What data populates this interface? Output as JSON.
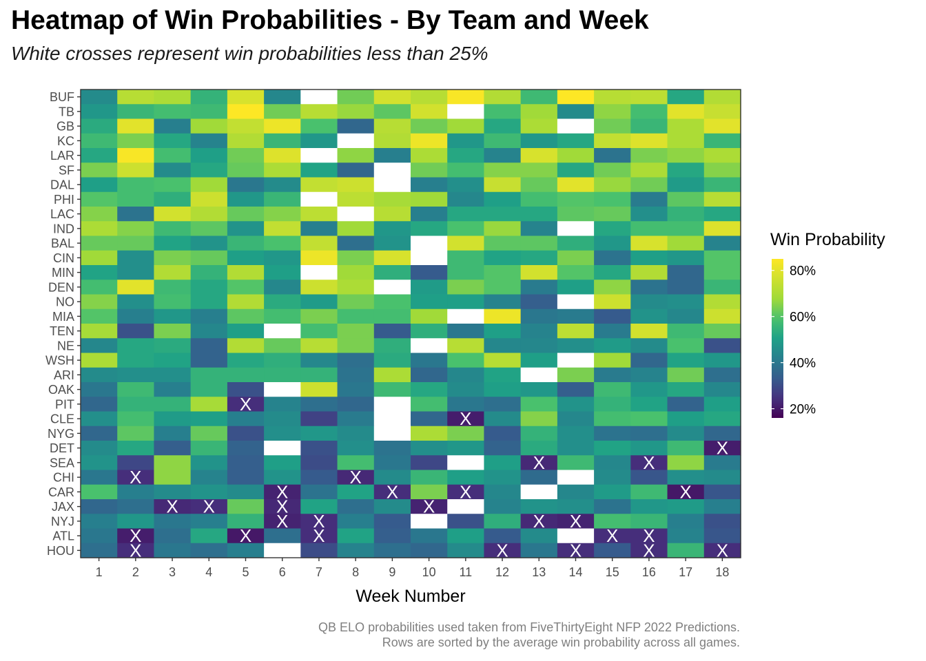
{
  "title": "Heatmap of Win Probabilities - By Team and Week",
  "subtitle": "White crosses represent win probabilities less than 25%",
  "caption": [
    "QB ELO probabilities used taken from FiveThirtyEight NFP 2022 Predictions.",
    "Rows are sorted by the average win probability across all games."
  ],
  "legend": {
    "title": "Win Probability",
    "tick_labels": [
      "20%",
      "40%",
      "60%",
      "80%"
    ],
    "tick_values": [
      0.2,
      0.4,
      0.6,
      0.8
    ],
    "range": [
      0.16,
      0.85
    ]
  },
  "chart_data": {
    "type": "heatmap",
    "title": "Heatmap of Win Probabilities - By Team and Week",
    "xlabel": "Week Number",
    "ylabel": "",
    "x": [
      1,
      2,
      3,
      4,
      5,
      6,
      7,
      8,
      9,
      10,
      11,
      12,
      13,
      14,
      15,
      16,
      17,
      18
    ],
    "y": [
      "BUF",
      "TB",
      "GB",
      "KC",
      "LAR",
      "SF",
      "DAL",
      "PHI",
      "LAC",
      "IND",
      "BAL",
      "CIN",
      "MIN",
      "DEN",
      "NO",
      "MIA",
      "TEN",
      "NE",
      "WSH",
      "ARI",
      "OAK",
      "PIT",
      "CLE",
      "NYG",
      "DET",
      "SEA",
      "CHI",
      "CAR",
      "JAX",
      "NYJ",
      "ATL",
      "HOU"
    ],
    "values": [
      [
        0.45,
        0.72,
        0.7,
        0.55,
        0.78,
        0.44,
        null,
        0.63,
        0.77,
        0.72,
        0.84,
        0.71,
        0.57,
        0.85,
        0.72,
        0.73,
        0.52,
        0.71
      ],
      [
        0.48,
        0.56,
        0.58,
        0.57,
        0.85,
        0.63,
        0.72,
        0.67,
        0.61,
        0.77,
        null,
        0.58,
        0.68,
        0.45,
        0.66,
        0.58,
        0.8,
        0.75
      ],
      [
        0.53,
        0.8,
        0.42,
        0.68,
        0.74,
        0.82,
        0.59,
        0.36,
        0.72,
        0.63,
        0.68,
        0.52,
        0.7,
        null,
        0.63,
        0.56,
        0.7,
        0.8
      ],
      [
        0.57,
        0.64,
        0.52,
        0.43,
        0.71,
        0.56,
        0.48,
        null,
        0.71,
        0.82,
        0.48,
        0.57,
        0.48,
        0.52,
        0.74,
        0.79,
        0.7,
        0.56
      ],
      [
        0.52,
        0.84,
        0.58,
        0.5,
        0.63,
        0.79,
        null,
        0.66,
        0.42,
        0.7,
        0.52,
        0.43,
        0.78,
        0.68,
        0.39,
        0.64,
        0.66,
        0.7
      ],
      [
        0.64,
        0.76,
        0.45,
        0.52,
        0.62,
        0.7,
        0.51,
        0.36,
        null,
        0.63,
        0.58,
        0.65,
        0.65,
        0.52,
        0.63,
        0.7,
        0.52,
        0.65
      ],
      [
        0.5,
        0.58,
        0.59,
        0.68,
        0.4,
        0.45,
        0.74,
        0.76,
        null,
        0.42,
        0.46,
        0.75,
        0.62,
        0.8,
        0.67,
        0.63,
        0.49,
        0.56
      ],
      [
        0.6,
        0.58,
        0.54,
        0.76,
        0.48,
        0.56,
        null,
        0.73,
        0.69,
        0.68,
        0.44,
        0.5,
        0.58,
        0.6,
        0.59,
        0.41,
        0.61,
        0.72
      ],
      [
        0.65,
        0.39,
        0.77,
        0.71,
        0.62,
        0.65,
        0.73,
        null,
        0.72,
        0.42,
        0.52,
        0.52,
        0.52,
        0.61,
        0.62,
        0.46,
        0.55,
        0.52
      ],
      [
        0.7,
        0.65,
        0.57,
        0.61,
        0.47,
        0.74,
        0.42,
        0.68,
        0.48,
        0.52,
        0.59,
        0.67,
        0.43,
        null,
        0.52,
        0.58,
        0.58,
        0.79
      ],
      [
        0.62,
        0.62,
        0.51,
        0.47,
        0.56,
        0.59,
        0.74,
        0.38,
        0.47,
        null,
        0.77,
        0.61,
        0.61,
        0.54,
        0.48,
        0.78,
        0.68,
        0.43
      ],
      [
        0.68,
        0.46,
        0.64,
        0.62,
        0.5,
        0.48,
        0.82,
        0.64,
        0.78,
        null,
        0.57,
        0.51,
        0.52,
        0.64,
        0.39,
        0.5,
        0.48,
        0.6
      ],
      [
        0.51,
        0.46,
        0.71,
        0.55,
        0.71,
        0.5,
        null,
        0.68,
        0.54,
        0.33,
        0.57,
        0.6,
        0.77,
        0.6,
        0.52,
        0.71,
        0.36,
        0.6
      ],
      [
        0.58,
        0.8,
        0.57,
        0.52,
        0.6,
        0.44,
        0.76,
        0.7,
        null,
        0.49,
        0.64,
        0.6,
        0.41,
        0.5,
        0.66,
        0.39,
        0.36,
        0.56
      ],
      [
        0.65,
        0.46,
        0.58,
        0.52,
        0.71,
        0.53,
        0.49,
        0.63,
        0.59,
        0.5,
        0.5,
        0.43,
        0.34,
        null,
        0.76,
        0.45,
        0.46,
        0.71
      ],
      [
        0.6,
        0.42,
        0.48,
        0.42,
        0.61,
        0.58,
        0.64,
        0.58,
        0.58,
        0.68,
        null,
        0.82,
        0.4,
        0.41,
        0.33,
        0.47,
        0.44,
        0.76
      ],
      [
        0.69,
        0.31,
        0.64,
        0.44,
        0.5,
        null,
        0.58,
        0.64,
        0.33,
        0.54,
        0.4,
        0.5,
        0.43,
        0.73,
        0.41,
        0.77,
        0.57,
        0.62
      ],
      [
        0.44,
        0.52,
        0.53,
        0.35,
        0.71,
        0.62,
        0.72,
        0.64,
        0.54,
        null,
        0.72,
        0.44,
        0.44,
        0.46,
        0.49,
        0.45,
        0.59,
        0.31
      ],
      [
        0.7,
        0.52,
        0.51,
        0.35,
        0.52,
        0.54,
        0.44,
        0.38,
        0.53,
        0.4,
        0.59,
        0.72,
        0.5,
        null,
        0.68,
        0.36,
        0.51,
        0.48
      ],
      [
        0.45,
        0.46,
        0.46,
        0.55,
        0.55,
        0.55,
        0.55,
        0.39,
        0.7,
        0.36,
        0.44,
        0.51,
        null,
        0.64,
        0.41,
        0.43,
        0.63,
        0.38
      ],
      [
        0.4,
        0.57,
        0.42,
        0.55,
        0.31,
        null,
        0.76,
        0.4,
        0.57,
        0.52,
        0.45,
        0.5,
        0.48,
        0.34,
        0.57,
        0.48,
        0.52,
        0.44
      ],
      [
        0.36,
        0.55,
        0.55,
        0.69,
        0.24,
        0.43,
        0.38,
        0.36,
        null,
        0.58,
        0.4,
        0.38,
        0.59,
        0.47,
        0.55,
        0.51,
        0.35,
        0.5
      ],
      [
        0.46,
        0.58,
        0.49,
        0.5,
        0.42,
        0.45,
        0.28,
        0.41,
        null,
        0.36,
        0.21,
        0.45,
        0.65,
        0.44,
        0.58,
        0.59,
        0.5,
        0.52
      ],
      [
        0.36,
        0.61,
        0.42,
        0.62,
        0.31,
        0.46,
        0.48,
        0.45,
        null,
        0.7,
        0.64,
        0.33,
        0.55,
        0.46,
        0.39,
        0.38,
        0.45,
        0.36
      ],
      [
        0.45,
        0.52,
        0.34,
        0.56,
        0.35,
        null,
        0.31,
        0.46,
        0.39,
        0.46,
        0.48,
        0.35,
        0.53,
        0.46,
        0.51,
        0.48,
        0.57,
        0.21
      ],
      [
        0.47,
        0.29,
        0.66,
        0.47,
        0.34,
        0.5,
        0.3,
        0.58,
        0.4,
        0.29,
        null,
        0.5,
        0.23,
        0.57,
        0.44,
        0.24,
        0.66,
        0.41
      ],
      [
        0.4,
        0.24,
        0.66,
        0.43,
        0.34,
        0.47,
        0.33,
        0.23,
        0.45,
        0.56,
        0.5,
        0.47,
        0.37,
        null,
        0.45,
        0.32,
        0.46,
        0.45
      ],
      [
        0.59,
        0.42,
        0.45,
        0.47,
        0.45,
        0.22,
        0.39,
        0.51,
        0.24,
        0.64,
        0.24,
        0.44,
        null,
        0.44,
        0.49,
        0.57,
        0.2,
        0.32
      ],
      [
        0.36,
        0.38,
        0.23,
        0.24,
        0.62,
        0.23,
        0.51,
        0.38,
        0.45,
        0.22,
        null,
        0.43,
        0.47,
        0.46,
        0.39,
        0.48,
        0.49,
        0.42
      ],
      [
        0.42,
        0.48,
        0.4,
        0.42,
        0.55,
        0.22,
        0.24,
        0.42,
        0.33,
        null,
        0.31,
        0.54,
        0.23,
        0.22,
        0.58,
        0.56,
        0.42,
        0.31
      ],
      [
        0.4,
        0.21,
        0.38,
        0.52,
        0.2,
        0.38,
        0.24,
        0.51,
        0.34,
        0.4,
        0.5,
        0.33,
        0.45,
        null,
        0.24,
        0.24,
        0.43,
        0.32
      ],
      [
        0.38,
        0.24,
        0.4,
        0.38,
        0.42,
        null,
        0.3,
        0.43,
        0.38,
        0.36,
        0.45,
        0.24,
        0.4,
        0.24,
        0.33,
        0.24,
        0.56,
        0.24
      ]
    ],
    "threshold": 0.25,
    "colorscale": "viridis",
    "missing_color": "#ffffff",
    "cross_color": "#ffffff",
    "panel_border_color": "#333333"
  }
}
